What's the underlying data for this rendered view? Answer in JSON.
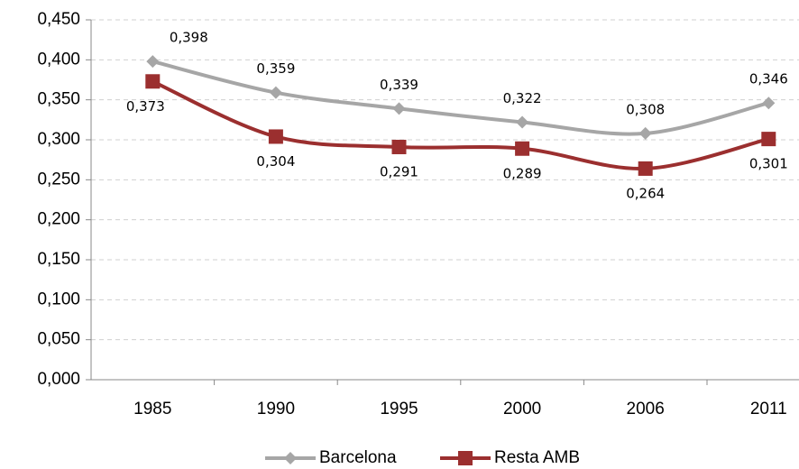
{
  "chart_data": {
    "type": "line",
    "categories": [
      "1985",
      "1990",
      "1995",
      "2000",
      "2006",
      "2011"
    ],
    "series": [
      {
        "name": "Barcelona",
        "color": "#a6a6a6",
        "marker": "diamond",
        "values": [
          0.398,
          0.359,
          0.339,
          0.322,
          0.308,
          0.346
        ],
        "value_labels": [
          "0,398",
          "0,359",
          "0,339",
          "0,322",
          "0,308",
          "0,346"
        ]
      },
      {
        "name": "Resta AMB",
        "color": "#9b2f2f",
        "marker": "square",
        "values": [
          0.373,
          0.304,
          0.291,
          0.289,
          0.264,
          0.301
        ],
        "value_labels": [
          "0,373",
          "0,304",
          "0,291",
          "0,289",
          "0,264",
          "0,301"
        ]
      }
    ],
    "ylim": [
      0,
      0.45
    ],
    "yticks": [
      {
        "value": 0,
        "label": "0,000"
      },
      {
        "value": 0.05,
        "label": "0,050"
      },
      {
        "value": 0.1,
        "label": "0,100"
      },
      {
        "value": 0.15,
        "label": "0,150"
      },
      {
        "value": 0.2,
        "label": "0,200"
      },
      {
        "value": 0.25,
        "label": "0,250"
      },
      {
        "value": 0.3,
        "label": "0,300"
      },
      {
        "value": 0.35,
        "label": "0,350"
      },
      {
        "value": 0.4,
        "label": "0,400"
      },
      {
        "value": 0.45,
        "label": "0,450"
      }
    ],
    "grid": true,
    "legend": "bottom"
  }
}
